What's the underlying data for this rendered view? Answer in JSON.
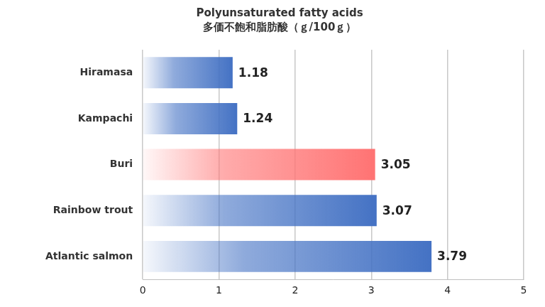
{
  "chart_data": {
    "type": "bar",
    "orientation": "horizontal",
    "title": "Polyunsaturated fatty acids",
    "subtitle": "多価不飽和脂肪酸（ｇ/100ｇ）",
    "categories": [
      "Hiramasa",
      "Kampachi",
      "Buri",
      "Rainbow trout",
      "Atlantic salmon"
    ],
    "values": [
      1.18,
      1.24,
      3.05,
      3.07,
      3.79
    ],
    "colors": [
      "#4472c4",
      "#4472c4",
      "#ff7373",
      "#4472c4",
      "#4472c4"
    ],
    "xlim": [
      0,
      5
    ],
    "xticks": [
      0,
      1,
      2,
      3,
      4,
      5
    ],
    "grid": true,
    "data_labels": true
  }
}
